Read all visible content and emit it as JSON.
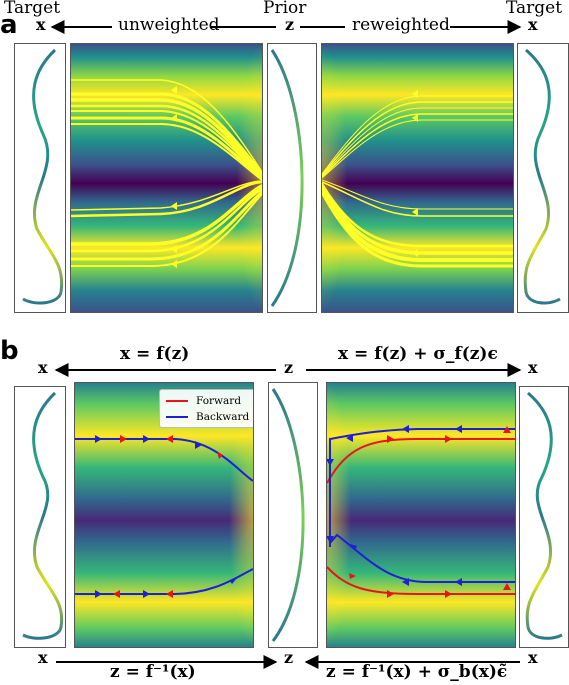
{
  "panel_a": {
    "letter": "a",
    "target_left": "Target",
    "target_right": "Target",
    "prior": "Prior",
    "x_left": "x",
    "x_right": "x",
    "z": "z",
    "unweighted": "unweighted",
    "reweighted": "reweighted"
  },
  "panel_b": {
    "letter": "b",
    "x_left_top": "x",
    "x_right_top": "x",
    "z_top": "z",
    "x_left_bottom": "x",
    "x_right_bottom": "x",
    "z_bottom": "z",
    "eq_top_left": "x = f(z)",
    "eq_top_right": "x = f(z) + σ_f(z)ϵ",
    "eq_bottom_left": "z = f⁻¹(x)",
    "eq_bottom_right": "z = f⁻¹(x) + σ_b(x)ϵ̃",
    "legend_forward": "Forward",
    "legend_backward": "Backward"
  },
  "colors": {
    "forward": "#e8141c",
    "backward": "#1f1fd6",
    "trajectory": "#ffff28",
    "arrow": "#000000",
    "colormap": "viridis"
  }
}
